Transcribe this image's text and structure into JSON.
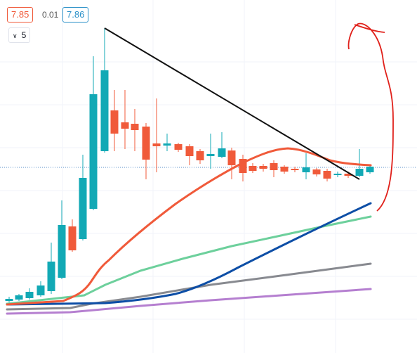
{
  "header": {
    "sell_price": "7.85",
    "spread": "0.01",
    "buy_price": "7.86"
  },
  "interval_control": {
    "label": "5"
  }
}
